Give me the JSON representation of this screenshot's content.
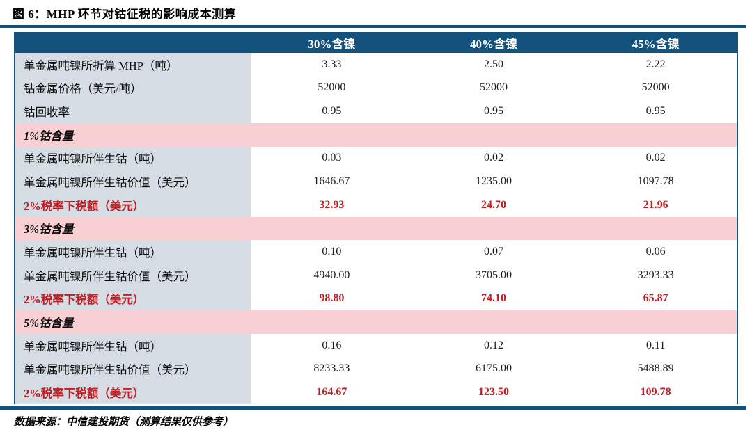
{
  "title": "图 6：MHP 环节对钴征税的影响成本测算",
  "footer": "数据来源：中信建投期货（测算结果仅供参考）",
  "colors": {
    "header_bg": "#13527D",
    "section_bg": "#F8CFD2",
    "label_bg": "#D6DCE3",
    "highlight_red": "#C01E23"
  },
  "table": {
    "columns": [
      "",
      "30%含镍",
      "40%含镍",
      "45%含镍"
    ],
    "rows": [
      {
        "type": "data",
        "label": "单金属吨镍所折算 MHP（吨）",
        "values": [
          "3.33",
          "2.50",
          "2.22"
        ]
      },
      {
        "type": "data",
        "label": "钴金属价格（美元/吨）",
        "values": [
          "52000",
          "52000",
          "52000"
        ]
      },
      {
        "type": "data",
        "label": "钴回收率",
        "values": [
          "0.95",
          "0.95",
          "0.95"
        ]
      },
      {
        "type": "section",
        "label": "1%钴含量",
        "values": [
          "",
          "",
          ""
        ]
      },
      {
        "type": "data",
        "label": "单金属吨镍所伴生钴（吨）",
        "values": [
          "0.03",
          "0.02",
          "0.02"
        ]
      },
      {
        "type": "data",
        "label": "单金属吨镍所伴生钴价值（美元）",
        "values": [
          "1646.67",
          "1235.00",
          "1097.78"
        ]
      },
      {
        "type": "highlight",
        "label": "2%税率下税额（美元）",
        "values": [
          "32.93",
          "24.70",
          "21.96"
        ]
      },
      {
        "type": "section",
        "label": "3%钴含量",
        "values": [
          "",
          "",
          ""
        ]
      },
      {
        "type": "data",
        "label": "单金属吨镍所伴生钴（吨）",
        "values": [
          "0.10",
          "0.07",
          "0.06"
        ]
      },
      {
        "type": "data",
        "label": "单金属吨镍所伴生钴价值（美元）",
        "values": [
          "4940.00",
          "3705.00",
          "3293.33"
        ]
      },
      {
        "type": "highlight",
        "label": "2%税率下税额（美元）",
        "values": [
          "98.80",
          "74.10",
          "65.87"
        ]
      },
      {
        "type": "section",
        "label": "5%钴含量",
        "values": [
          "",
          "",
          ""
        ]
      },
      {
        "type": "data",
        "label": "单金属吨镍所伴生钴（吨）",
        "values": [
          "0.16",
          "0.12",
          "0.11"
        ]
      },
      {
        "type": "data",
        "label": "单金属吨镍所伴生钴价值（美元）",
        "values": [
          "8233.33",
          "6175.00",
          "5488.89"
        ]
      },
      {
        "type": "highlight",
        "label": "2%税率下税额（美元）",
        "values": [
          "164.67",
          "123.50",
          "109.78"
        ]
      }
    ]
  }
}
